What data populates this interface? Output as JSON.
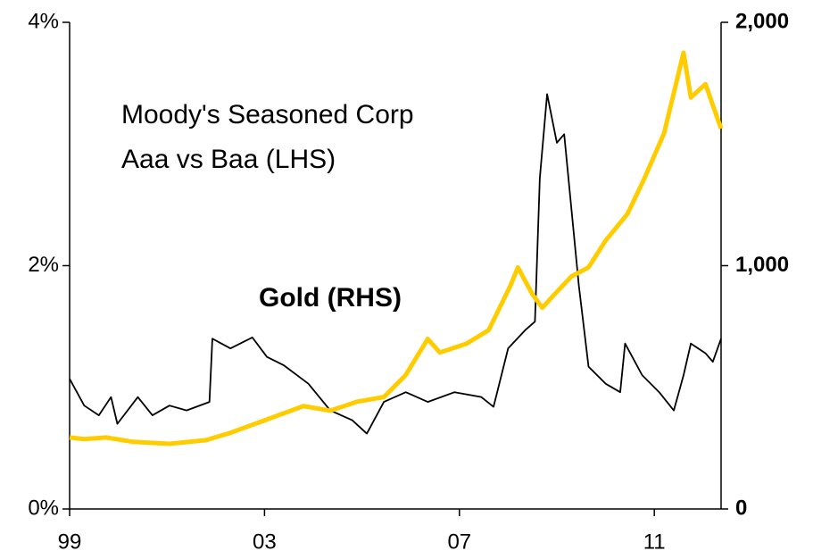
{
  "chart_data": {
    "type": "line",
    "annotations": [
      "Moody's Seasoned Corp",
      "Aaa vs Baa (LHS)"
    ],
    "xlim": [
      1999,
      2012.37
    ],
    "xticks": [
      {
        "value": 1999,
        "label": "99"
      },
      {
        "value": 2003,
        "label": "03"
      },
      {
        "value": 2007,
        "label": "07"
      },
      {
        "value": 2011,
        "label": "11"
      }
    ],
    "ylim": [
      0,
      4
    ],
    "yticks": [
      {
        "value": 0,
        "label": "0%"
      },
      {
        "value": 2,
        "label": "2%"
      },
      {
        "value": 4,
        "label": "4%"
      }
    ],
    "y2lim": [
      0,
      2000
    ],
    "y2ticks": [
      0,
      {
        "value": 1000,
        "label": "1,000"
      },
      {
        "value": 2000,
        "label": "2,000"
      }
    ],
    "series": [
      {
        "color": "#000000",
        "x": [
          1999.0,
          1999.3,
          1999.6,
          1999.85,
          1999.98,
          2000.4,
          2000.7,
          2001.05,
          2001.4,
          2001.87,
          2001.93,
          2002.3,
          2002.75,
          2003.05,
          2003.4,
          2003.9,
          2004.35,
          2004.8,
          2005.1,
          2005.45,
          2005.9,
          2006.35,
          2006.9,
          2007.45,
          2007.7,
          2008.0,
          2008.35,
          2008.55,
          2008.65,
          2008.8,
          2009.0,
          2009.15,
          2009.45,
          2009.65,
          2010.0,
          2010.3,
          2010.4,
          2010.75,
          2011.1,
          2011.4,
          2011.6,
          2011.75,
          2012.05,
          2012.2,
          2012.37
        ],
        "values": [
          1.07,
          0.85,
          0.77,
          0.92,
          0.7,
          0.92,
          0.77,
          0.85,
          0.81,
          0.88,
          1.4,
          1.32,
          1.41,
          1.25,
          1.18,
          1.03,
          0.81,
          0.73,
          0.62,
          0.88,
          0.96,
          0.88,
          0.96,
          0.92,
          0.84,
          1.32,
          1.47,
          1.54,
          2.72,
          3.41,
          3.01,
          3.08,
          1.84,
          1.17,
          1.03,
          0.96,
          1.36,
          1.1,
          0.96,
          0.81,
          1.1,
          1.36,
          1.28,
          1.21,
          1.4
        ]
      },
      {
        "name": "Gold (RHS)",
        "color": "#ffcc00",
        "axis": "y2",
        "x": [
          1999.0,
          1999.3,
          1999.75,
          2000.3,
          2001.05,
          2001.8,
          2002.3,
          2003.05,
          2003.8,
          2004.35,
          2004.9,
          2005.45,
          2005.9,
          2006.35,
          2006.6,
          2007.15,
          2007.6,
          2008.05,
          2008.2,
          2008.5,
          2008.7,
          2008.95,
          2009.3,
          2009.65,
          2010.0,
          2010.45,
          2010.8,
          2011.2,
          2011.6,
          2011.75,
          2012.05,
          2012.37
        ],
        "values": [
          294,
          287,
          294,
          276,
          268,
          283,
          313,
          368,
          423,
          404,
          441,
          460,
          551,
          699,
          643,
          680,
          735,
          919,
          993,
          882,
          827,
          882,
          956,
          993,
          1103,
          1213,
          1360,
          1544,
          1875,
          1691,
          1746,
          1563
        ]
      }
    ]
  }
}
